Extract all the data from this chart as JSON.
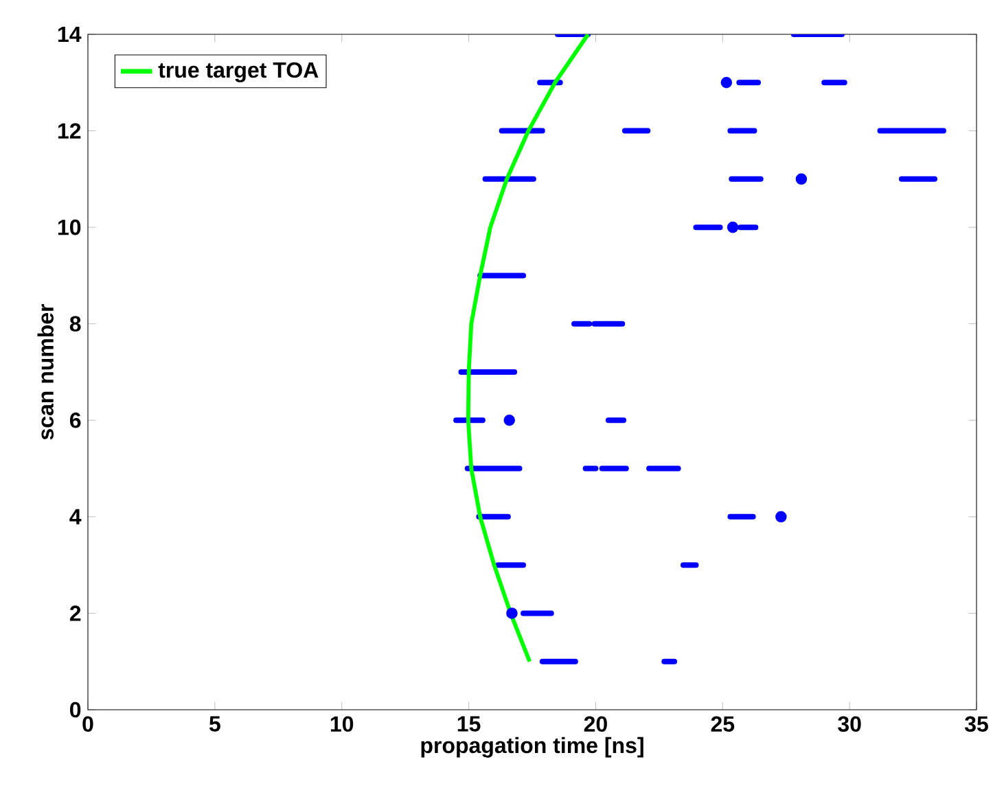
{
  "chart_data": {
    "type": "line",
    "xlabel": "propagation time [ns]",
    "ylabel": "scan number",
    "xlim": [
      0,
      35
    ],
    "ylim": [
      0,
      14
    ],
    "xticks": [
      0,
      5,
      10,
      15,
      20,
      25,
      30,
      35
    ],
    "yticks": [
      0,
      2,
      4,
      6,
      8,
      10,
      12,
      14
    ],
    "grid": false,
    "legend": "top left",
    "series": [
      {
        "name": "true target TOA",
        "type": "line",
        "color": "#00ff00",
        "x": [
          17.4,
          16.65,
          16.0,
          15.45,
          15.1,
          14.98,
          15.0,
          15.1,
          15.45,
          15.85,
          16.5,
          17.35,
          18.4,
          19.7
        ],
        "values": [
          1,
          2,
          3,
          4,
          5,
          6,
          7,
          8,
          9,
          10,
          11,
          12,
          13,
          14
        ]
      },
      {
        "type": "scatter",
        "marker": "circle",
        "color": "#0000ff",
        "x": [
          25.15,
          28.1,
          25.4,
          16.6,
          27.3,
          16.7
        ],
        "values": [
          13,
          11,
          10,
          6,
          4,
          2
        ]
      },
      {
        "color": "#0000ff",
        "x": [
          18.5,
          19.7,
          null,
          27.8,
          29.7,
          null,
          17.8,
          18.6,
          null,
          25.65,
          26.4,
          null,
          29.0,
          29.8,
          null,
          16.3,
          17.9,
          null,
          21.15,
          22.05,
          null,
          25.3,
          26.25,
          null,
          31.2,
          33.7,
          null,
          15.65,
          17.55,
          null,
          25.35,
          26.5,
          null,
          32.05,
          33.35,
          null,
          23.95,
          24.9,
          null,
          25.7,
          26.3,
          null,
          15.45,
          17.15,
          null,
          19.15,
          19.75,
          null,
          19.95,
          21.05,
          null,
          14.7,
          16.8,
          null,
          14.5,
          15.55,
          null,
          20.5,
          21.1,
          null,
          14.95,
          16.2,
          null,
          16.25,
          17.0,
          null,
          19.6,
          20.0,
          null,
          20.25,
          21.2,
          null,
          22.1,
          23.25,
          null,
          15.4,
          16.55,
          null,
          25.3,
          26.2,
          null,
          16.15,
          17.15,
          null,
          23.45,
          23.95,
          null,
          17.15,
          18.25,
          null,
          17.9,
          19.2,
          null,
          22.7,
          23.1
        ],
        "values": [
          14,
          14,
          null,
          14,
          14,
          null,
          13,
          13,
          null,
          13,
          13,
          null,
          13,
          13,
          null,
          12,
          12,
          null,
          12,
          12,
          null,
          12,
          12,
          null,
          12,
          12,
          null,
          11,
          11,
          null,
          11,
          11,
          null,
          11,
          11,
          null,
          10,
          10,
          null,
          10,
          10,
          null,
          9,
          9,
          null,
          8,
          8,
          null,
          8,
          8,
          null,
          7,
          7,
          null,
          6,
          6,
          null,
          6,
          6,
          null,
          5,
          5,
          null,
          5,
          5,
          null,
          5,
          5,
          null,
          5,
          5,
          null,
          5,
          5,
          null,
          4,
          4,
          null,
          4,
          4,
          null,
          3,
          3,
          null,
          3,
          3,
          null,
          2,
          2,
          null,
          1,
          1,
          null,
          1,
          1
        ]
      }
    ]
  }
}
